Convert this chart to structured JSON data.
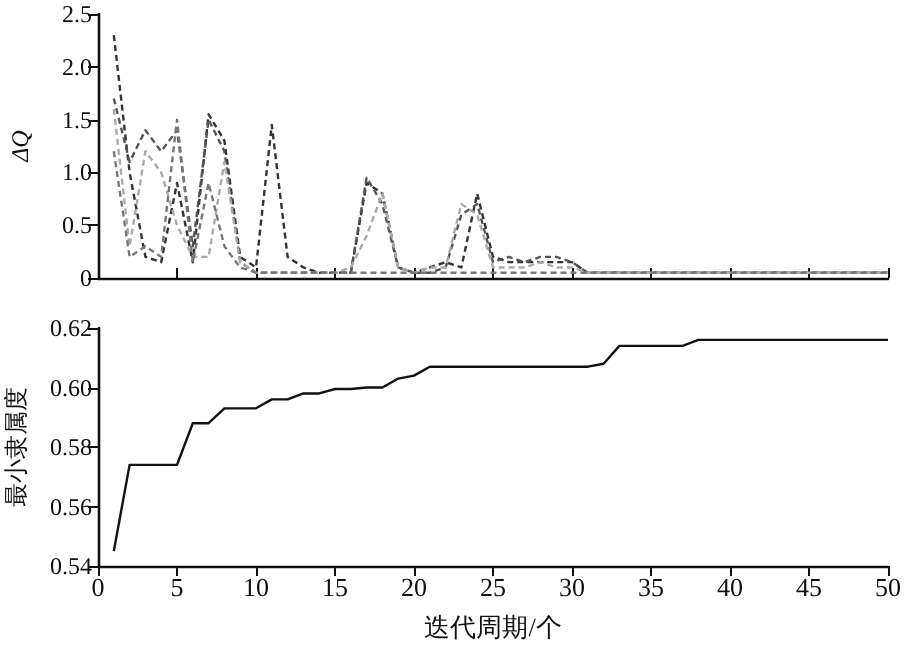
{
  "chart_data": [
    {
      "type": "line",
      "ylabel": "ΔQ",
      "line_style": "dashed",
      "marker": "none",
      "tick_labels": "y",
      "grid": false,
      "xlim": [
        0,
        50
      ],
      "xticks": [
        0,
        5,
        10,
        15,
        20,
        25,
        30,
        35,
        40,
        45,
        50
      ],
      "ylim": [
        0,
        2.5
      ],
      "yticks": [
        0,
        0.5,
        {
          "value": 1,
          "label": "1.0"
        },
        1.5,
        {
          "value": 2,
          "label": "2.0"
        },
        2.5
      ],
      "x": [
        1,
        2,
        3,
        4,
        5,
        6,
        7,
        8,
        9,
        10,
        11,
        12,
        13,
        14,
        15,
        16,
        17,
        18,
        19,
        20,
        21,
        22,
        23,
        24,
        25,
        26,
        27,
        28,
        29,
        30,
        31,
        32,
        33,
        34,
        35,
        36,
        37,
        38,
        39,
        40,
        41,
        42,
        43,
        44,
        45,
        46,
        47,
        48,
        49,
        50
      ],
      "series": [
        {
          "color": "#333333",
          "values": [
            2.3,
            1.0,
            0.2,
            0.15,
            0.9,
            0.15,
            1.55,
            1.3,
            0.2,
            0.1,
            1.45,
            0.2,
            0.1,
            0.05,
            0.05,
            0.05,
            0.9,
            0.8,
            0.1,
            0.05,
            0.1,
            0.15,
            0.1,
            0.8,
            0.2,
            0.15,
            0.15,
            0.15,
            0.15,
            0.15,
            0.05,
            0.05,
            0.05,
            0.05,
            0.05,
            0.05,
            0.05,
            0.05,
            0.05,
            0.05,
            0.05,
            0.05,
            0.05,
            0.05,
            0.05,
            0.05,
            0.05,
            0.05,
            0.05,
            0.05
          ]
        },
        {
          "color": "#555555",
          "values": [
            1.7,
            1.1,
            1.4,
            1.2,
            1.4,
            0.3,
            1.5,
            1.2,
            0.15,
            0.05,
            0.05,
            0.05,
            0.05,
            0.05,
            0.05,
            0.05,
            0.95,
            0.7,
            0.1,
            0.05,
            0.05,
            0.1,
            0.6,
            0.7,
            0.15,
            0.2,
            0.15,
            0.2,
            0.2,
            0.15,
            0.05,
            0.05,
            0.05,
            0.05,
            0.05,
            0.05,
            0.05,
            0.05,
            0.05,
            0.05,
            0.05,
            0.05,
            0.05,
            0.05,
            0.05,
            0.05,
            0.05,
            0.05,
            0.05,
            0.05
          ]
        },
        {
          "color": "#aaaaaa",
          "values": [
            1.6,
            0.3,
            1.2,
            1.0,
            0.5,
            0.2,
            0.2,
            1.1,
            0.15,
            0.05,
            0.05,
            0.05,
            0.05,
            0.05,
            0.05,
            0.1,
            0.4,
            0.8,
            0.1,
            0.05,
            0.1,
            0.1,
            0.7,
            0.6,
            0.1,
            0.1,
            0.1,
            0.15,
            0.1,
            0.1,
            0.05,
            0.05,
            0.05,
            0.05,
            0.05,
            0.05,
            0.05,
            0.05,
            0.05,
            0.05,
            0.05,
            0.05,
            0.05,
            0.05,
            0.05,
            0.05,
            0.05,
            0.05,
            0.05,
            0.05
          ]
        },
        {
          "color": "#777777",
          "values": [
            1.2,
            0.2,
            0.3,
            0.2,
            1.5,
            0.15,
            0.9,
            0.3,
            0.1,
            0.05,
            0.05,
            0.05,
            0.05,
            0.05,
            0.05,
            0.05,
            0.05,
            0.05,
            0.05,
            0.05,
            0.05,
            0.05,
            0.05,
            0.05,
            0.05,
            0.05,
            0.05,
            0.05,
            0.05,
            0.05,
            0.05,
            0.05,
            0.05,
            0.05,
            0.05,
            0.05,
            0.05,
            0.05,
            0.05,
            0.05,
            0.05,
            0.05,
            0.05,
            0.05,
            0.05,
            0.05,
            0.05,
            0.05,
            0.05,
            0.05
          ]
        }
      ]
    },
    {
      "type": "line",
      "xlabel": "迭代周期/个",
      "ylabel": "最小隶属度",
      "marker": "none",
      "grid": false,
      "xlim": [
        0,
        50
      ],
      "xticks": [
        0,
        5,
        10,
        15,
        20,
        25,
        30,
        35,
        40,
        45,
        50
      ],
      "ylim": [
        0.54,
        0.62
      ],
      "yticks": [
        {
          "value": 0.54,
          "label": "0.54"
        },
        {
          "value": 0.56,
          "label": "0.56"
        },
        {
          "value": 0.58,
          "label": "0.58"
        },
        {
          "value": 0.6,
          "label": "0.60"
        },
        {
          "value": 0.62,
          "label": "0.62"
        }
      ],
      "x": [
        1,
        2,
        3,
        4,
        5,
        6,
        7,
        8,
        9,
        10,
        11,
        12,
        13,
        14,
        15,
        16,
        17,
        18,
        19,
        20,
        21,
        22,
        23,
        24,
        25,
        26,
        27,
        28,
        29,
        30,
        31,
        32,
        33,
        34,
        35,
        36,
        37,
        38,
        39,
        40,
        41,
        42,
        43,
        44,
        45,
        46,
        47,
        48,
        49,
        50
      ],
      "series": [
        {
          "color": "#111111",
          "values": [
            0.545,
            0.574,
            0.574,
            0.574,
            0.574,
            0.588,
            0.588,
            0.593,
            0.593,
            0.593,
            0.596,
            0.596,
            0.598,
            0.598,
            0.5995,
            0.5995,
            0.6,
            0.6,
            0.603,
            0.604,
            0.607,
            0.607,
            0.607,
            0.607,
            0.607,
            0.607,
            0.607,
            0.607,
            0.607,
            0.607,
            0.607,
            0.608,
            0.614,
            0.614,
            0.614,
            0.614,
            0.614,
            0.616,
            0.616,
            0.616,
            0.616,
            0.616,
            0.616,
            0.616,
            0.616,
            0.616,
            0.616,
            0.616,
            0.616,
            0.616
          ]
        }
      ]
    }
  ]
}
